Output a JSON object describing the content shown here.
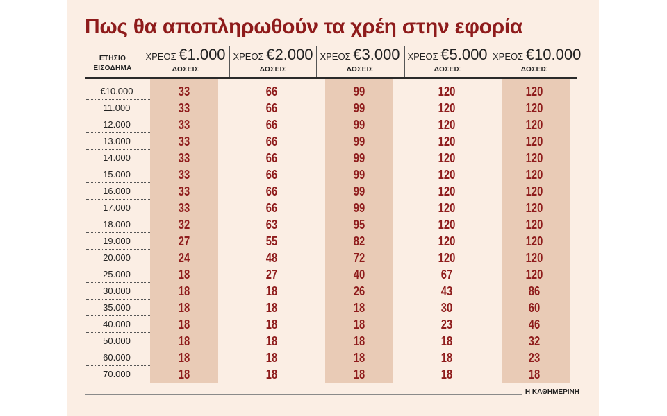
{
  "chart_data": {
    "type": "table",
    "title": "Πως θα αποπληρωθούν τα χρέη στην εφορία",
    "row_header": [
      "ΕΤΗΣΙΟ",
      "ΕΙΣΟΔΗΜΑ"
    ],
    "columns": [
      {
        "prefix": "ΧΡΕΟΣ",
        "amount": "€1.000",
        "sub": "ΔΟΣΕΙΣ"
      },
      {
        "prefix": "ΧΡΕΟΣ",
        "amount": "€2.000",
        "sub": "ΔΟΣΕΙΣ"
      },
      {
        "prefix": "ΧΡΕΟΣ",
        "amount": "€3.000",
        "sub": "ΔΟΣΕΙΣ"
      },
      {
        "prefix": "ΧΡΕΟΣ",
        "amount": "€5.000",
        "sub": "ΔΟΣΕΙΣ"
      },
      {
        "prefix": "ΧΡΕΟΣ",
        "amount": "€10.000",
        "sub": "ΔΟΣΕΙΣ"
      }
    ],
    "rows": [
      {
        "income": "€10.000",
        "values": [
          33,
          66,
          99,
          120,
          120
        ]
      },
      {
        "income": "11.000",
        "values": [
          33,
          66,
          99,
          120,
          120
        ]
      },
      {
        "income": "12.000",
        "values": [
          33,
          66,
          99,
          120,
          120
        ]
      },
      {
        "income": "13.000",
        "values": [
          33,
          66,
          99,
          120,
          120
        ]
      },
      {
        "income": "14.000",
        "values": [
          33,
          66,
          99,
          120,
          120
        ]
      },
      {
        "income": "15.000",
        "values": [
          33,
          66,
          99,
          120,
          120
        ]
      },
      {
        "income": "16.000",
        "values": [
          33,
          66,
          99,
          120,
          120
        ]
      },
      {
        "income": "17.000",
        "values": [
          33,
          66,
          99,
          120,
          120
        ]
      },
      {
        "income": "18.000",
        "values": [
          32,
          63,
          95,
          120,
          120
        ]
      },
      {
        "income": "19.000",
        "values": [
          27,
          55,
          82,
          120,
          120
        ]
      },
      {
        "income": "20.000",
        "values": [
          24,
          48,
          72,
          120,
          120
        ]
      },
      {
        "income": "25.000",
        "values": [
          18,
          27,
          40,
          67,
          120
        ]
      },
      {
        "income": "30.000",
        "values": [
          18,
          18,
          26,
          43,
          86
        ]
      },
      {
        "income": "35.000",
        "values": [
          18,
          18,
          18,
          30,
          60
        ]
      },
      {
        "income": "40.000",
        "values": [
          18,
          18,
          18,
          23,
          46
        ]
      },
      {
        "income": "50.000",
        "values": [
          18,
          18,
          18,
          18,
          32
        ]
      },
      {
        "income": "60.000",
        "values": [
          18,
          18,
          18,
          18,
          23
        ]
      },
      {
        "income": "70.000",
        "values": [
          18,
          18,
          18,
          18,
          18
        ]
      }
    ],
    "colors": {
      "title": "#8e1b1b",
      "values": "#8e1b1b",
      "background": "#fbeee4",
      "stripe": "#e9cbb6"
    }
  },
  "footer": {
    "source": "Η ΚΑΘΗΜΕΡΙΝΗ"
  }
}
